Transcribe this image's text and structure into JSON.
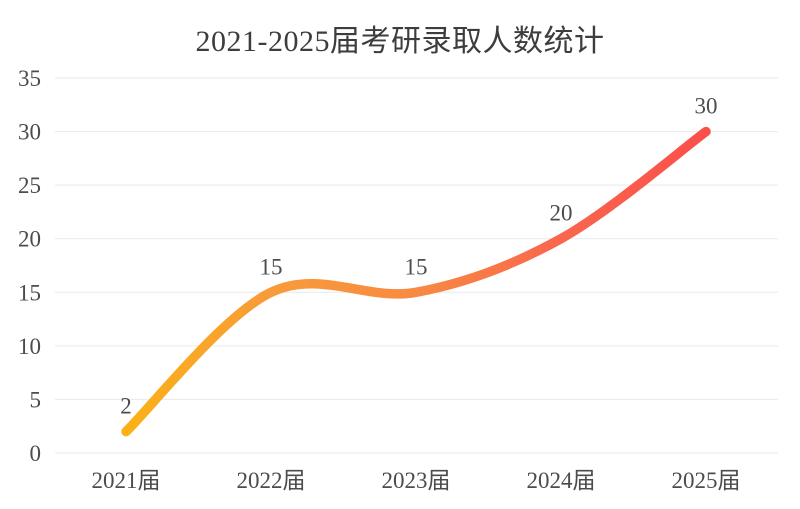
{
  "chart_data": {
    "type": "line",
    "title": "2021-2025届考研录取人数统计",
    "categories": [
      "2021届",
      "2022届",
      "2023届",
      "2024届",
      "2025届"
    ],
    "values": [
      2,
      15,
      15,
      20,
      30
    ],
    "data_labels": [
      "2",
      "15",
      "15",
      "20",
      "30"
    ],
    "y_ticks": [
      0,
      5,
      10,
      15,
      20,
      25,
      30,
      35
    ],
    "y_tick_labels": [
      "0",
      "5",
      "10",
      "15",
      "20",
      "25",
      "30",
      "35"
    ],
    "ylim": [
      0,
      35
    ],
    "smooth": true,
    "grid": "horizontal-only",
    "legend": "none",
    "line_gradient": [
      {
        "offset": 0,
        "color": "#FBB116"
      },
      {
        "offset": 0.25,
        "color": "#F89B3A"
      },
      {
        "offset": 0.5,
        "color": "#F88A42"
      },
      {
        "offset": 0.75,
        "color": "#F9664D"
      },
      {
        "offset": 1,
        "color": "#FA4F4B"
      }
    ],
    "colors": {
      "title": "#3d3d3d",
      "axis_labels": "#4c4c4c",
      "data_labels": "#4c4c4c",
      "gridline": "#e9e9e9",
      "background": "#ffffff"
    }
  }
}
